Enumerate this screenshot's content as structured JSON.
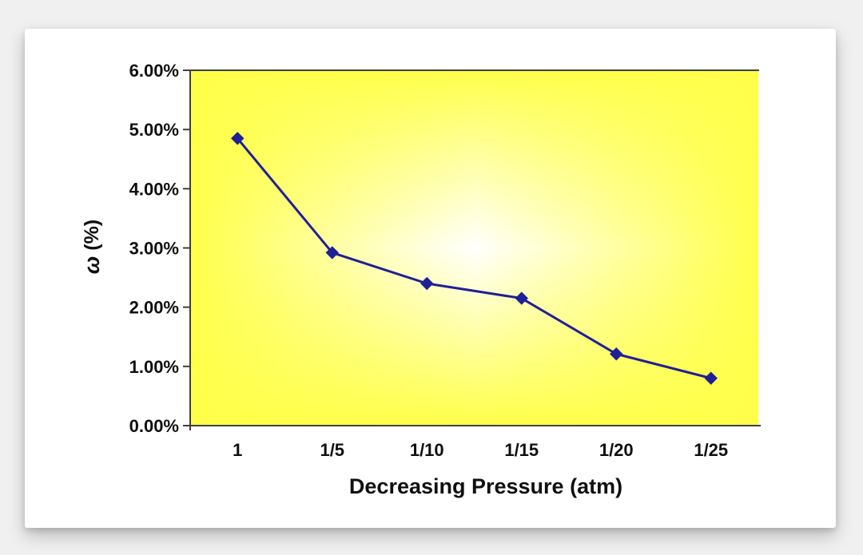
{
  "colors": {
    "page_bg": "#F0F0F1",
    "card_bg": "#FFFFFF",
    "series": "#1F1F96",
    "plot_yellow": "#FFFF4A",
    "plot_center": "#FFFFFF",
    "axis": "#3F3F3F",
    "text": "#0F0F0F"
  },
  "chart_data": {
    "type": "line",
    "title": "",
    "categories": [
      "1",
      "1/5",
      "1/10",
      "1/15",
      "1/20",
      "1/25"
    ],
    "series": [
      {
        "name": "omega",
        "values": [
          4.85,
          2.92,
          2.4,
          2.15,
          1.21,
          0.8
        ]
      }
    ],
    "xlabel": "Decreasing Pressure (atm)",
    "ylabel": "ω (%)",
    "ylabel_symbol": "ω",
    "ylabel_unit": "(%)",
    "ylim": [
      0,
      6
    ],
    "ytick_step": 1,
    "ytick_labels": [
      "0.00%",
      "1.00%",
      "2.00%",
      "3.00%",
      "4.00%",
      "5.00%",
      "6.00%"
    ],
    "grid": false,
    "legend_position": "none",
    "marker": "diamond",
    "plot_background": "yellow edges fading to white center (rectangular gradient)"
  }
}
